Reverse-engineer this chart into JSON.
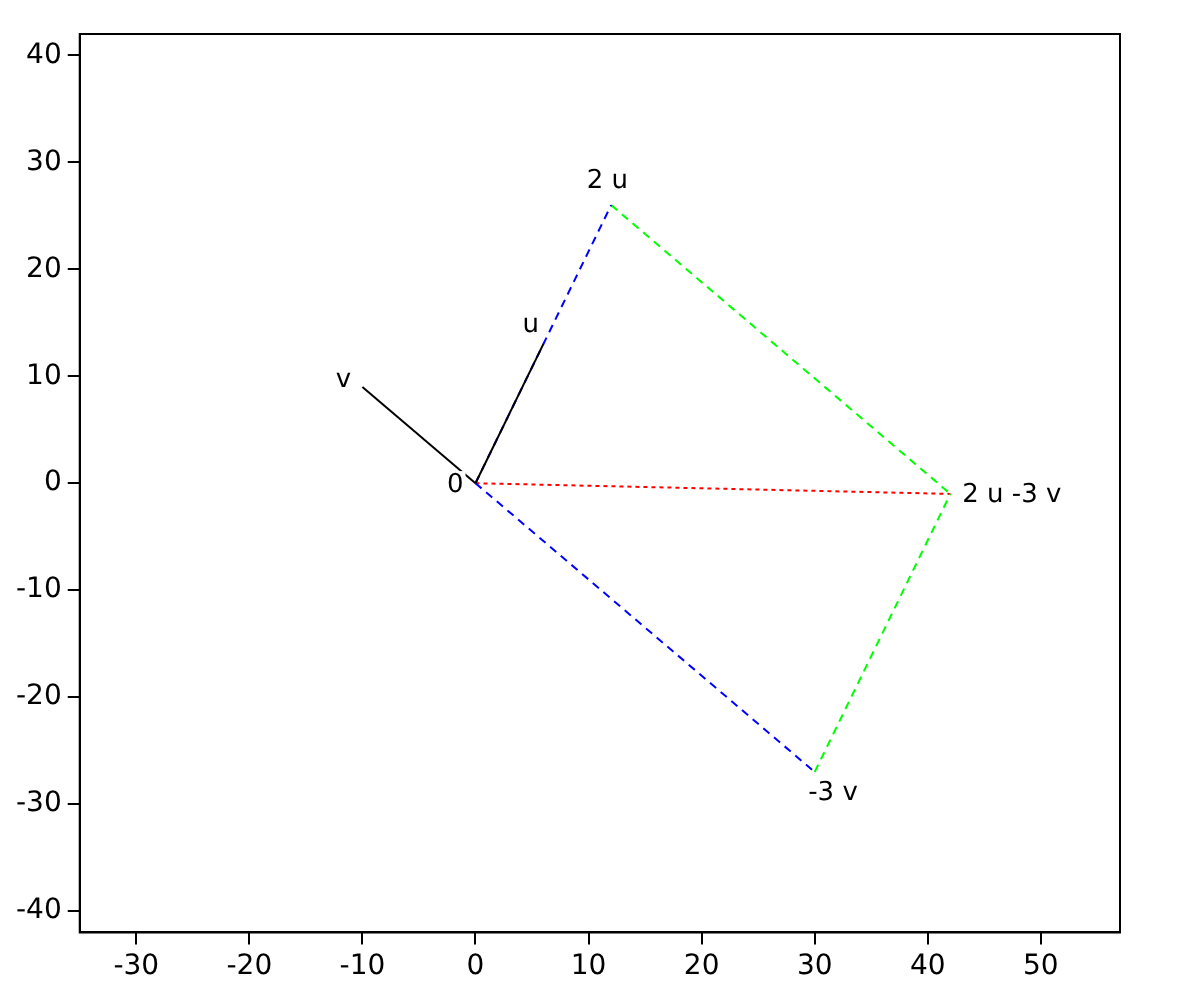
{
  "chart_data": {
    "type": "line",
    "xlim": [
      -35,
      57
    ],
    "ylim": [
      -42,
      42
    ],
    "xticks": [
      -30,
      -20,
      -10,
      0,
      10,
      20,
      30,
      40,
      50
    ],
    "yticks": [
      -40,
      -30,
      -20,
      -10,
      0,
      10,
      20,
      30,
      40
    ],
    "grid": false,
    "legend": false,
    "marker": "none",
    "series": [
      {
        "color": "#000000",
        "x": [
          0,
          6
        ],
        "values": [
          0,
          13
        ],
        "line_style": "solid"
      },
      {
        "color": "#000000",
        "x": [
          0,
          -10
        ],
        "values": [
          0,
          9
        ],
        "line_style": "solid"
      },
      {
        "color": "#0000ff",
        "x": [
          0,
          12
        ],
        "values": [
          0,
          26
        ],
        "line_style": "dashed"
      },
      {
        "color": "#0000ff",
        "x": [
          0,
          30
        ],
        "values": [
          0,
          -27
        ],
        "line_style": "dashed"
      },
      {
        "color": "#00ff00",
        "x": [
          12,
          42
        ],
        "values": [
          26,
          -1
        ],
        "line_style": "dashed"
      },
      {
        "color": "#00ff00",
        "x": [
          30,
          42
        ],
        "values": [
          -27,
          -1
        ],
        "line_style": "dashed"
      },
      {
        "color": "#ff0000",
        "x": [
          0,
          42
        ],
        "values": [
          0,
          -1
        ],
        "line_style": "dotted"
      }
    ],
    "annotations": [
      {
        "text": "u",
        "x": 6,
        "y": 13
      },
      {
        "text": "v",
        "x": -10,
        "y": 9
      },
      {
        "text": "2 u",
        "x": 12,
        "y": 26
      },
      {
        "text": "0",
        "x": 0,
        "y": 0
      },
      {
        "text": "-3 v",
        "x": 30,
        "y": -27
      },
      {
        "text": "2 u -3 v",
        "x": 42,
        "y": -1
      }
    ]
  }
}
